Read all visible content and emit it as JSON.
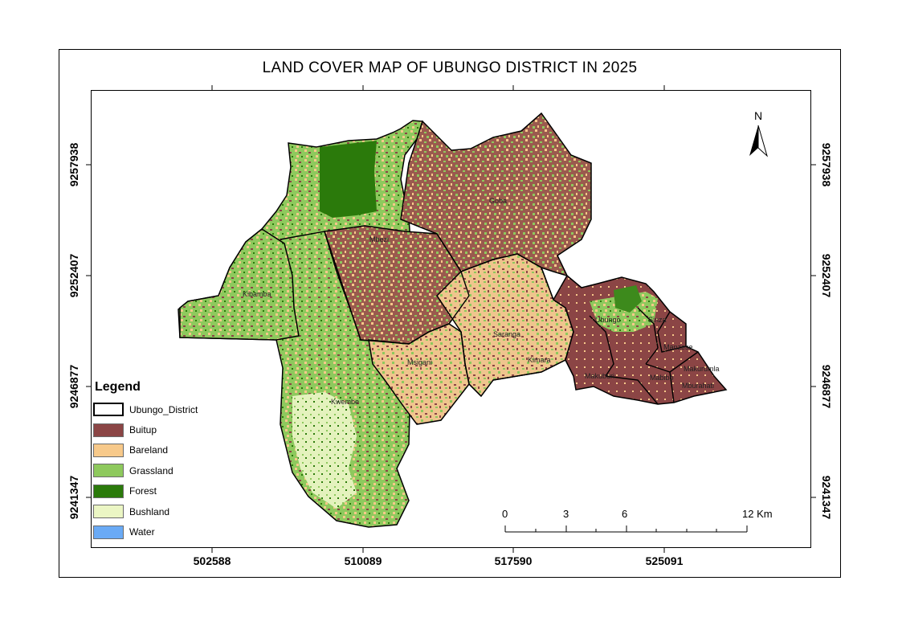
{
  "map": {
    "title": "LAND COVER MAP OF UBUNGO DISTRICT IN 2025",
    "x_ticks": [
      "502588",
      "510089",
      "517590",
      "525091"
    ],
    "y_ticks": [
      "9257938",
      "9252407",
      "9246877",
      "9241347"
    ],
    "north_label": "N",
    "scale": {
      "labels": [
        "0",
        "3",
        "6",
        "12 Km"
      ]
    },
    "places": [
      {
        "id": "mbezi",
        "label": "Mbezi"
      },
      {
        "id": "goba",
        "label": "Goba"
      },
      {
        "id": "kibamba",
        "label": "Kibamba"
      },
      {
        "id": "saranga",
        "label": "Saranga"
      },
      {
        "id": "msigani",
        "label": "Msigani"
      },
      {
        "id": "kimara",
        "label": "Kimara"
      },
      {
        "id": "ubungo",
        "label": "Ubungo"
      },
      {
        "id": "sinza",
        "label": "Sinza"
      },
      {
        "id": "manzese",
        "label": "Manzese"
      },
      {
        "id": "makuburi",
        "label": "Makuburi"
      },
      {
        "id": "mabibo",
        "label": "Mabibo"
      },
      {
        "id": "makurumla",
        "label": "Makurumla"
      },
      {
        "id": "mburahati",
        "label": "Mburahati"
      },
      {
        "id": "kwembe",
        "label": "Kwembe"
      }
    ]
  },
  "legend": {
    "title": "Legend",
    "items": [
      {
        "label": "Ubungo_District",
        "color": "#ffffff",
        "type": "boundary"
      },
      {
        "label": "Buitup",
        "color": "#8b4545",
        "type": "class"
      },
      {
        "label": "Bareland",
        "color": "#f7c98a",
        "type": "class"
      },
      {
        "label": "Grassland",
        "color": "#8ec95d",
        "type": "class"
      },
      {
        "label": "Forest",
        "color": "#2b7a0b",
        "type": "class"
      },
      {
        "label": "Bushland",
        "color": "#ebf6c4",
        "type": "class"
      },
      {
        "label": "Water",
        "color": "#6aaaf5",
        "type": "class"
      }
    ]
  }
}
